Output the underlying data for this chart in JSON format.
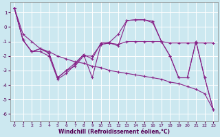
{
  "xlabel": "Windchill (Refroidissement éolien,°C)",
  "background_color": "#cce8f0",
  "grid_color": "#ffffff",
  "line_color": "#882288",
  "xlim": [
    -0.5,
    23.5
  ],
  "ylim": [
    -6.5,
    1.7
  ],
  "yticks": [
    1,
    0,
    -1,
    -2,
    -3,
    -4,
    -5,
    -6
  ],
  "xticks": [
    0,
    1,
    2,
    3,
    4,
    5,
    6,
    7,
    8,
    9,
    10,
    11,
    12,
    13,
    14,
    15,
    16,
    17,
    18,
    19,
    20,
    21,
    22,
    23
  ],
  "line1_x": [
    0,
    1,
    2,
    3,
    4,
    5,
    6,
    7,
    8,
    9,
    10,
    11,
    12,
    13,
    14,
    15,
    16,
    17,
    18,
    19,
    20,
    21,
    22,
    23
  ],
  "line1_y": [
    1.3,
    -0.9,
    -1.7,
    -1.5,
    -1.8,
    -3.5,
    -3.0,
    -2.5,
    -1.9,
    -2.2,
    -1.1,
    -1.05,
    -0.5,
    0.45,
    0.5,
    0.5,
    0.4,
    -1.0,
    -2.0,
    -3.5,
    -3.5,
    -1.0,
    -3.5,
    -5.7
  ],
  "line2_x": [
    0,
    1,
    2,
    3,
    4,
    5,
    6,
    7,
    8,
    9,
    10,
    11,
    12,
    13,
    14,
    15,
    16,
    17,
    18,
    19,
    20,
    21,
    22,
    23
  ],
  "line2_y": [
    1.3,
    -0.9,
    -1.7,
    -1.7,
    -2.0,
    -3.6,
    -3.2,
    -2.6,
    -1.9,
    -3.5,
    -1.2,
    -1.1,
    -1.2,
    -1.0,
    -1.0,
    -1.0,
    -1.0,
    -1.0,
    -1.1,
    -1.1,
    -1.1,
    -1.1,
    -1.1,
    -1.1
  ],
  "line3_x": [
    0,
    1,
    2,
    3,
    4,
    5,
    6,
    7,
    8,
    9,
    10,
    11,
    12,
    13,
    14,
    15,
    16,
    17,
    18,
    19,
    20,
    21,
    22,
    23
  ],
  "line3_y": [
    1.3,
    -0.9,
    -1.7,
    -1.5,
    -1.8,
    -3.5,
    -3.0,
    -2.7,
    -2.0,
    -2.0,
    -1.2,
    -1.1,
    -1.3,
    0.45,
    0.5,
    0.5,
    0.3,
    -1.0,
    -2.0,
    -3.5,
    -3.5,
    -1.0,
    -3.5,
    -5.7
  ],
  "line4_x": [
    0,
    1,
    2,
    3,
    4,
    5,
    6,
    7,
    8,
    9,
    10,
    11,
    12,
    13,
    14,
    15,
    16,
    17,
    18,
    19,
    20,
    21,
    22,
    23
  ],
  "line4_y": [
    1.3,
    -0.5,
    -1.0,
    -1.5,
    -1.7,
    -2.0,
    -2.2,
    -2.4,
    -2.5,
    -2.7,
    -2.8,
    -3.0,
    -3.1,
    -3.2,
    -3.3,
    -3.4,
    -3.5,
    -3.6,
    -3.8,
    -3.9,
    -4.1,
    -4.3,
    -4.6,
    -5.7
  ]
}
